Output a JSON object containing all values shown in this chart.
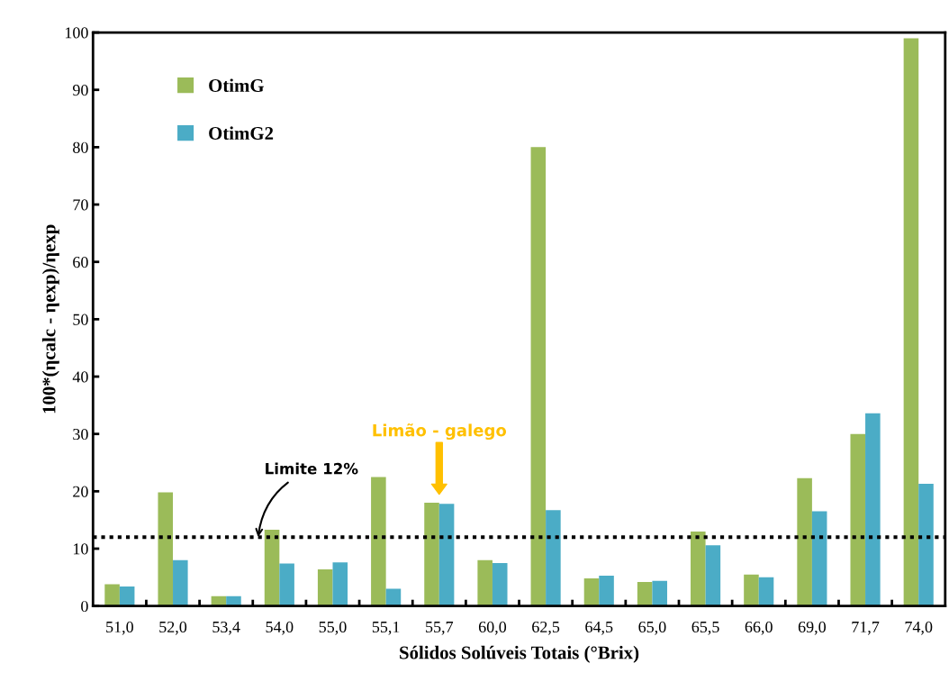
{
  "chart_data": {
    "type": "bar",
    "xlabel": "Sólidos Solúveis Totais (°Brix)",
    "ylabel": "100*(ηcalc - ηexp)/ηexp",
    "categories": [
      "51,0",
      "52,0",
      "53,4",
      "54,0",
      "55,0",
      "55,1",
      "55,7",
      "60,0",
      "62,5",
      "64,5",
      "65,0",
      "65,5",
      "66,0",
      "69,0",
      "71,7",
      "74,0"
    ],
    "series": [
      {
        "name": "OtimG",
        "color": "#9bbb59",
        "values": [
          3.8,
          19.8,
          1.7,
          13.3,
          6.4,
          22.5,
          18.0,
          8.0,
          80.0,
          4.8,
          4.2,
          13.0,
          5.5,
          22.3,
          30.0,
          99.0
        ]
      },
      {
        "name": "OtimG2",
        "color": "#4bacc6",
        "values": [
          3.4,
          8.0,
          1.7,
          7.4,
          7.6,
          3.0,
          17.8,
          7.5,
          16.7,
          5.3,
          4.4,
          10.6,
          5.0,
          16.5,
          33.6,
          21.3
        ]
      }
    ],
    "ylim": [
      0,
      100
    ],
    "yticks": [
      0,
      10,
      20,
      30,
      40,
      50,
      60,
      70,
      80,
      90,
      100
    ],
    "ref_lines": [
      {
        "axis": "y",
        "value": 12,
        "label": "Limite 12%",
        "color": "#000000",
        "line_style": "dotted"
      }
    ],
    "annotations": [
      "Limão - galego"
    ],
    "legend": "top left",
    "grid": false
  }
}
